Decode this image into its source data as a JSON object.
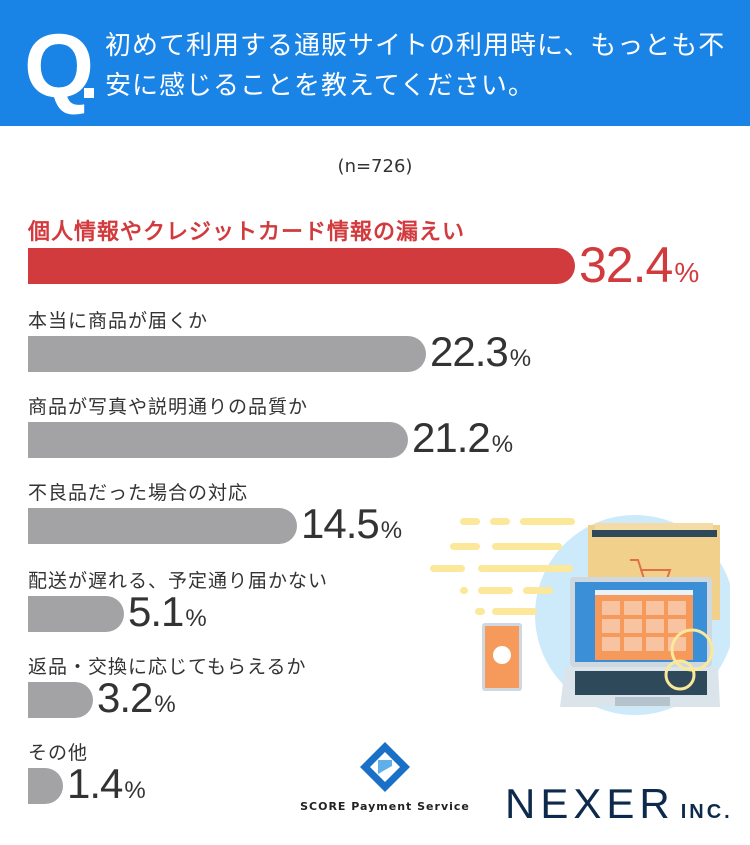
{
  "header": {
    "q_mark": "Q",
    "question": "初めて利用する通販サイトの利用時に、もっとも不安に感じることを教えてください。"
  },
  "sample": "(n=726)",
  "chart_data": {
    "type": "bar",
    "orientation": "horizontal",
    "title": "初めて利用する通販サイトの利用時に、もっとも不安に感じることを教えてください。",
    "categories": [
      "個人情報やクレジットカード情報の漏えい",
      "本当に商品が届くか",
      "商品が写真や説明通りの品質か",
      "不良品だった場合の対応",
      "配送が遅れる、予定通り届かない",
      "返品・交換に応じてもらえるか",
      "その他"
    ],
    "values": [
      32.4,
      22.3,
      21.2,
      14.5,
      5.1,
      3.2,
      1.4
    ],
    "value_labels": [
      "32.4",
      "22.3",
      "21.2",
      "14.5",
      "5.1",
      "3.2",
      "1.4"
    ],
    "unit": "%",
    "highlight_color": "#d23b3e",
    "bar_color": "#a3a3a6",
    "xlim": [
      0,
      33
    ]
  },
  "logos": {
    "score": "SCORE Payment Service",
    "nexer": "NEXER",
    "nexer_suffix": "INC."
  }
}
